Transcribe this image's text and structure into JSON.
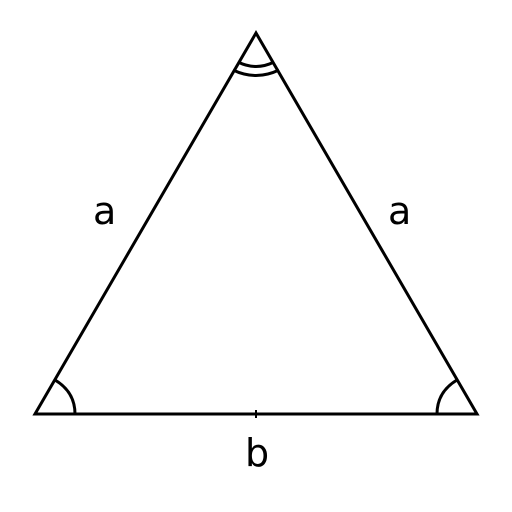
{
  "figure": {
    "type": "isosceles-triangle",
    "stroke_color": "#000000",
    "background_color": "#ffffff",
    "labels": {
      "left_side": "a",
      "right_side": "a",
      "base": "b"
    },
    "angle_marks": {
      "apex": "double-arc",
      "base_left": "single-arc",
      "base_right": "single-arc"
    }
  }
}
